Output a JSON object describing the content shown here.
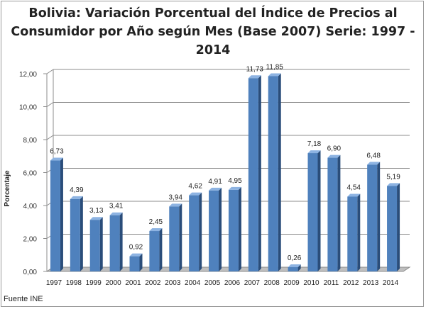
{
  "title_lines": [
    "Bolivia: Variación Porcentual del Índice de Precios al",
    "Consumidor por Año según Mes (Base 2007) Serie: 1997 -",
    "2014"
  ],
  "source": "Fuente INE",
  "colors": {
    "bar_front": "#4f81bd",
    "bar_side": "#2a4d7a",
    "bar_top": "#8db3e2",
    "grid": "#8c8c8c",
    "floor": "#bfbfbf"
  },
  "chart_data": {
    "type": "bar",
    "title": "Bolivia: Variación Porcentual del Índice de Precios al Consumidor por Año según Mes (Base 2007) Serie: 1997 - 2014",
    "xlabel": "",
    "ylabel": "Porcentaje",
    "ylim": [
      0,
      12
    ],
    "yticks": [
      0,
      2,
      4,
      6,
      8,
      10,
      12
    ],
    "ytick_labels": [
      "0,00",
      "2,00",
      "4,00",
      "6,00",
      "8,00",
      "10,00",
      "12,00"
    ],
    "categories": [
      "1997",
      "1998",
      "1999",
      "2000",
      "2001",
      "2002",
      "2003",
      "2004",
      "2005",
      "2006",
      "2007",
      "2008",
      "2009",
      "2010",
      "2011",
      "2012",
      "2013",
      "2014"
    ],
    "values": [
      6.73,
      4.39,
      3.13,
      3.41,
      0.92,
      2.45,
      3.94,
      4.62,
      4.91,
      4.95,
      11.73,
      11.85,
      0.26,
      7.18,
      6.9,
      4.54,
      6.48,
      5.19
    ],
    "value_labels": [
      "6,73",
      "4,39",
      "3,13",
      "3,41",
      "0,92",
      "2,45",
      "3,94",
      "4,62",
      "4,91",
      "4,95",
      "11,73",
      "11,85",
      "0,26",
      "7,18",
      "6,90",
      "4,54",
      "6,48",
      "5,19"
    ],
    "grid": true,
    "legend": "none"
  }
}
